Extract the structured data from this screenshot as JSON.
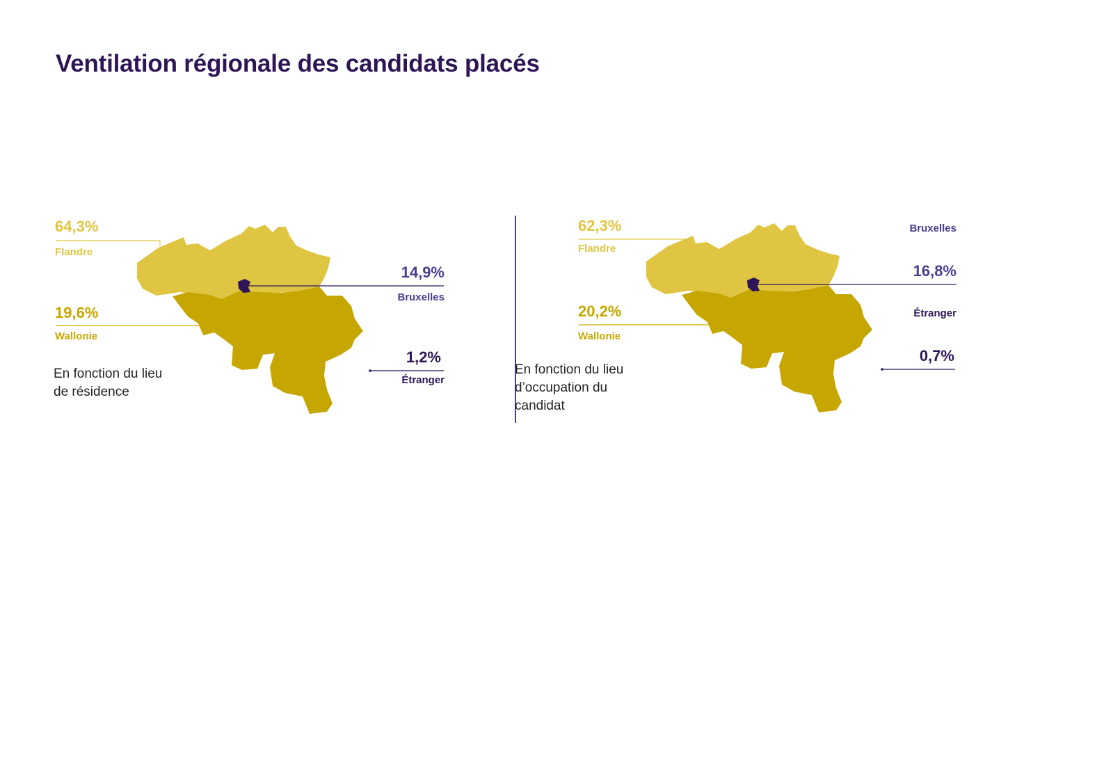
{
  "title": "Ventilation régionale des candidats placés",
  "colors": {
    "flandre": "#e0c542",
    "wallonie": "#c6a702",
    "bruxelles": "#2e1656",
    "bruxelles_label": "#4a3f8f",
    "etranger": "#2e1656"
  },
  "maps": [
    {
      "caption_line1": "En fonction du lieu",
      "caption_line2": "de résidence",
      "caption_line3": "",
      "flandre": {
        "value": "64,3%",
        "label": "Flandre"
      },
      "wallonie": {
        "value": "19,6%",
        "label": "Wallonie"
      },
      "bruxelles": {
        "value": "14,9%",
        "label": "Bruxelles"
      },
      "etranger": {
        "value": "1,2%",
        "label": "Étranger"
      }
    },
    {
      "caption_line1": "En fonction du lieu",
      "caption_line2": "d’occupation du",
      "caption_line3": "candidat",
      "flandre": {
        "value": "62,3%",
        "label": "Flandre"
      },
      "wallonie": {
        "value": "20,2%",
        "label": "Wallonie"
      },
      "bruxelles": {
        "value": "16,8%",
        "label": "Bruxelles"
      },
      "etranger": {
        "value": "0,7%",
        "label": "Étranger"
      }
    }
  ]
}
